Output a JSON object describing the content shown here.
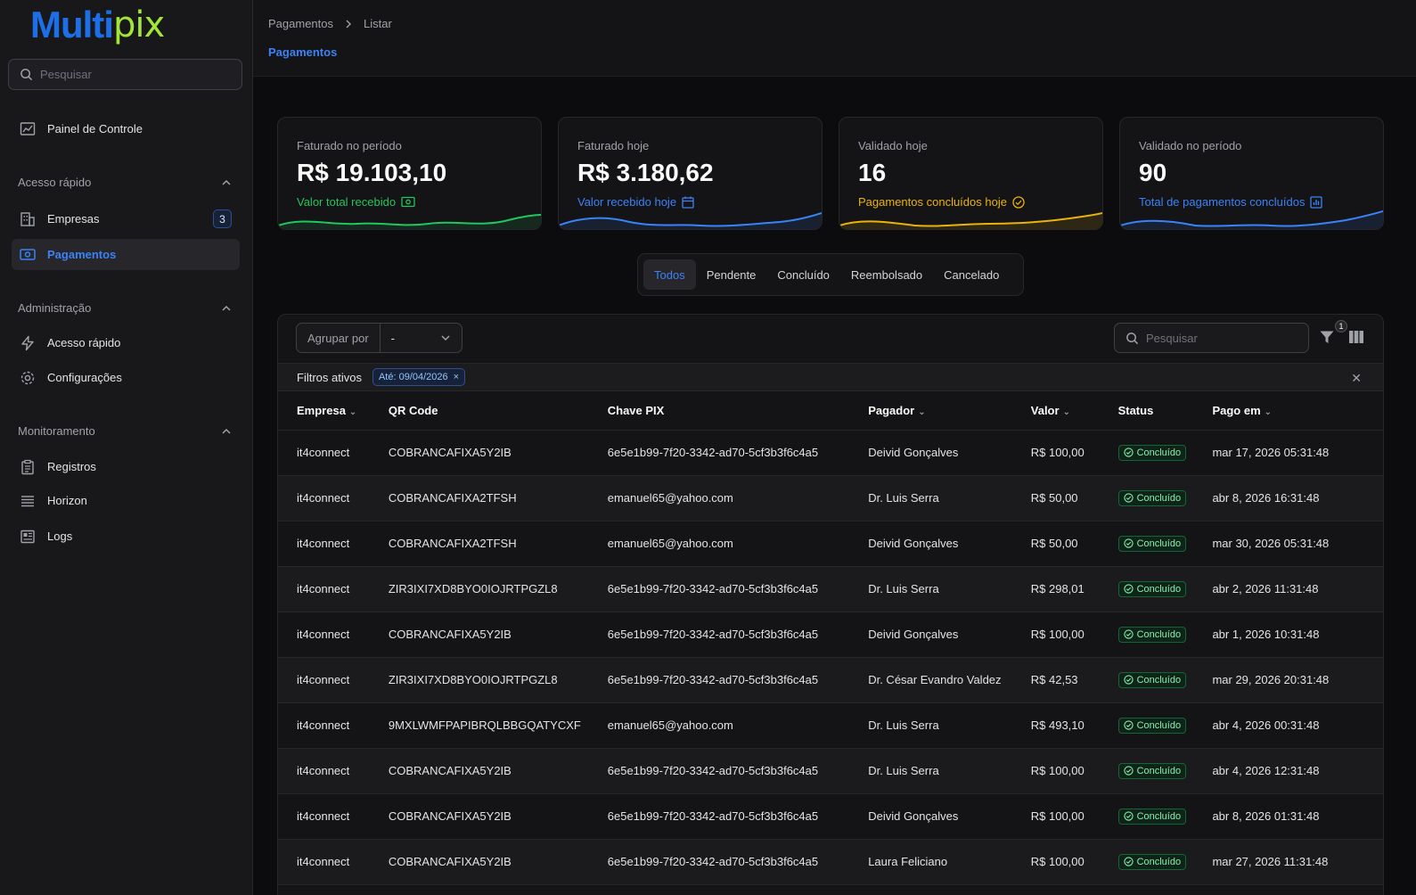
{
  "brand": {
    "part1": "Multi",
    "part2": "pix"
  },
  "sidebar": {
    "search_placeholder": "Pesquisar",
    "dashboard": "Painel de Controle",
    "sections": [
      {
        "title": "Acesso rápido",
        "items": [
          {
            "label": "Empresas",
            "badge": "3"
          },
          {
            "label": "Pagamentos"
          }
        ]
      },
      {
        "title": "Administração",
        "items": [
          {
            "label": "Acesso rápido"
          },
          {
            "label": "Configurações"
          }
        ]
      },
      {
        "title": "Monitoramento",
        "items": [
          {
            "label": "Registros"
          },
          {
            "label": "Horizon"
          },
          {
            "label": "Logs"
          }
        ]
      }
    ]
  },
  "header": {
    "breadcrumb": [
      "Pagamentos",
      "Listar"
    ],
    "title": "Pagamentos"
  },
  "stats": [
    {
      "label": "Faturado no período",
      "value": "R$ 19.103,10",
      "desc": "Valor total recebido",
      "color": "#22c55e"
    },
    {
      "label": "Faturado hoje",
      "value": "R$ 3.180,62",
      "desc": "Valor recebido hoje",
      "color": "#3b82f6"
    },
    {
      "label": "Validado hoje",
      "value": "16",
      "desc": "Pagamentos concluídos hoje",
      "color": "#eab308"
    },
    {
      "label": "Validado no período",
      "value": "90",
      "desc": "Total de pagamentos concluídos",
      "color": "#3b82f6"
    }
  ],
  "tabs": [
    "Todos",
    "Pendente",
    "Concluído",
    "Reembolsado",
    "Cancelado"
  ],
  "toolbar": {
    "group_label": "Agrupar por",
    "group_value": "-",
    "search_placeholder": "Pesquisar",
    "filter_count": "1"
  },
  "filters": {
    "label": "Filtros ativos",
    "chip": "Até: 09/04/2026"
  },
  "table": {
    "columns": [
      "Empresa",
      "QR Code",
      "Chave PIX",
      "Pagador",
      "Valor",
      "Status",
      "Pago em"
    ],
    "rows": [
      [
        "it4connect",
        "COBRANCAFIXA5Y2IB",
        "6e5e1b99-7f20-3342-ad70-5cf3b3f6c4a5",
        "Deivid Gonçalves",
        "R$ 100,00",
        "Concluído",
        "mar 17, 2026 05:31:48"
      ],
      [
        "it4connect",
        "COBRANCAFIXA2TFSH",
        "emanuel65@yahoo.com",
        "Dr. Luis Serra",
        "R$ 50,00",
        "Concluído",
        "abr 8, 2026 16:31:48"
      ],
      [
        "it4connect",
        "COBRANCAFIXA2TFSH",
        "emanuel65@yahoo.com",
        "Deivid Gonçalves",
        "R$ 50,00",
        "Concluído",
        "mar 30, 2026 05:31:48"
      ],
      [
        "it4connect",
        "ZIR3IXI7XD8BYO0IOJRTPGZL8",
        "6e5e1b99-7f20-3342-ad70-5cf3b3f6c4a5",
        "Dr. Luis Serra",
        "R$ 298,01",
        "Concluído",
        "abr 2, 2026 11:31:48"
      ],
      [
        "it4connect",
        "COBRANCAFIXA5Y2IB",
        "6e5e1b99-7f20-3342-ad70-5cf3b3f6c4a5",
        "Deivid Gonçalves",
        "R$ 100,00",
        "Concluído",
        "abr 1, 2026 10:31:48"
      ],
      [
        "it4connect",
        "ZIR3IXI7XD8BYO0IOJRTPGZL8",
        "6e5e1b99-7f20-3342-ad70-5cf3b3f6c4a5",
        "Dr. César Evandro Valdez",
        "R$ 42,53",
        "Concluído",
        "mar 29, 2026 20:31:48"
      ],
      [
        "it4connect",
        "9MXLWMFPAPIBRQLBBGQATYCXF",
        "emanuel65@yahoo.com",
        "Dr. Luis Serra",
        "R$ 493,10",
        "Concluído",
        "abr 4, 2026 00:31:48"
      ],
      [
        "it4connect",
        "COBRANCAFIXA5Y2IB",
        "6e5e1b99-7f20-3342-ad70-5cf3b3f6c4a5",
        "Dr. Luis Serra",
        "R$ 100,00",
        "Concluído",
        "abr 4, 2026 12:31:48"
      ],
      [
        "it4connect",
        "COBRANCAFIXA5Y2IB",
        "6e5e1b99-7f20-3342-ad70-5cf3b3f6c4a5",
        "Deivid Gonçalves",
        "R$ 100,00",
        "Concluído",
        "abr 8, 2026 01:31:48"
      ],
      [
        "it4connect",
        "COBRANCAFIXA5Y2IB",
        "6e5e1b99-7f20-3342-ad70-5cf3b3f6c4a5",
        "Laura Feliciano",
        "R$ 100,00",
        "Concluído",
        "mar 27, 2026 11:31:48"
      ]
    ]
  }
}
